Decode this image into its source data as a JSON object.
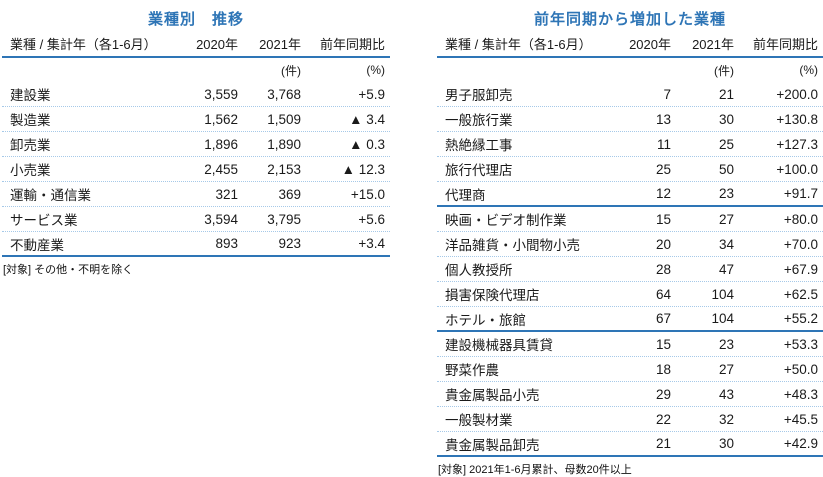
{
  "colors": {
    "accent_blue": "#2E75B6",
    "row_divider_blue": "#A6C9E8",
    "text": "#1A1A1A"
  },
  "tables": [
    {
      "title": "業種別　推移",
      "columns": {
        "label": "業種 / 集計年（各1-6月）",
        "y2020": "2020年",
        "y2021": "2021年",
        "yoy": "前年同期比"
      },
      "units": {
        "y2021": "(件)",
        "yoy": "(%)"
      },
      "rows": [
        {
          "label": "建設業",
          "y2020": "3,559",
          "y2021": "3,768",
          "yoy": "+5.9"
        },
        {
          "label": "製造業",
          "y2020": "1,562",
          "y2021": "1,509",
          "yoy": "▲ 3.4"
        },
        {
          "label": "卸売業",
          "y2020": "1,896",
          "y2021": "1,890",
          "yoy": "▲ 0.3"
        },
        {
          "label": "小売業",
          "y2020": "2,455",
          "y2021": "2,153",
          "yoy": "▲ 12.3"
        },
        {
          "label": "運輸・通信業",
          "y2020": "321",
          "y2021": "369",
          "yoy": "+15.0"
        },
        {
          "label": "サービス業",
          "y2020": "3,594",
          "y2021": "3,795",
          "yoy": "+5.6"
        },
        {
          "label": "不動産業",
          "y2020": "893",
          "y2021": "923",
          "yoy": "+3.4"
        }
      ],
      "footnote": "[対象] その他・不明を除く"
    },
    {
      "title": "前年同期から増加した業種",
      "columns": {
        "label": "業種 / 集計年（各1-6月）",
        "y2020": "2020年",
        "y2021": "2021年",
        "yoy": "前年同期比"
      },
      "units": {
        "y2021": "(件)",
        "yoy": "(%)"
      },
      "rows": [
        {
          "label": "男子服卸売",
          "y2020": "7",
          "y2021": "21",
          "yoy": "+200.0"
        },
        {
          "label": "一般旅行業",
          "y2020": "13",
          "y2021": "30",
          "yoy": "+130.8"
        },
        {
          "label": "熱絶縁工事",
          "y2020": "11",
          "y2021": "25",
          "yoy": "+127.3"
        },
        {
          "label": "旅行代理店",
          "y2020": "25",
          "y2021": "50",
          "yoy": "+100.0"
        },
        {
          "label": "代理商",
          "y2020": "12",
          "y2021": "23",
          "yoy": "+91.7",
          "group_end": true
        },
        {
          "label": "映画・ビデオ制作業",
          "y2020": "15",
          "y2021": "27",
          "yoy": "+80.0"
        },
        {
          "label": "洋品雑貨・小間物小売",
          "y2020": "20",
          "y2021": "34",
          "yoy": "+70.0"
        },
        {
          "label": "個人教授所",
          "y2020": "28",
          "y2021": "47",
          "yoy": "+67.9"
        },
        {
          "label": "損害保険代理店",
          "y2020": "64",
          "y2021": "104",
          "yoy": "+62.5"
        },
        {
          "label": "ホテル・旅館",
          "y2020": "67",
          "y2021": "104",
          "yoy": "+55.2",
          "group_end": true
        },
        {
          "label": "建設機械器具賃貸",
          "y2020": "15",
          "y2021": "23",
          "yoy": "+53.3"
        },
        {
          "label": "野菜作農",
          "y2020": "18",
          "y2021": "27",
          "yoy": "+50.0"
        },
        {
          "label": "貴金属製品小売",
          "y2020": "29",
          "y2021": "43",
          "yoy": "+48.3"
        },
        {
          "label": "一般製材業",
          "y2020": "22",
          "y2021": "32",
          "yoy": "+45.5"
        },
        {
          "label": "貴金属製品卸売",
          "y2020": "21",
          "y2021": "30",
          "yoy": "+42.9"
        }
      ],
      "footnote": "[対象] 2021年1-6月累計、母数20件以上"
    }
  ]
}
